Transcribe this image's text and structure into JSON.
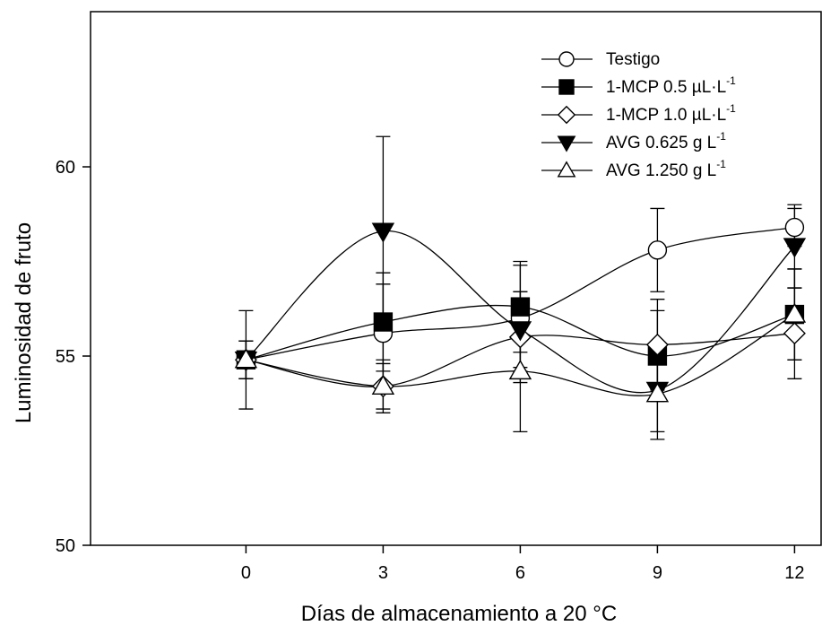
{
  "chart_data": {
    "type": "line",
    "xlabel": "Días de almacenamiento a 20 °C",
    "ylabel": "Luminosidad de fruto",
    "x": [
      0,
      3,
      6,
      9,
      12
    ],
    "x_ticks": [
      "0",
      "3",
      "6",
      "9",
      "12"
    ],
    "y_ticks": [
      "50",
      "55",
      "60"
    ],
    "xlim": [
      -3.4,
      12.6
    ],
    "ylim": [
      50,
      64.1
    ],
    "grid": false,
    "legend_position": "top-right",
    "series": [
      {
        "name": "Testigo",
        "label_main": "Testigo",
        "label_sup": "",
        "label_tail": "",
        "marker": "circle",
        "fill": "#ffffff",
        "values": [
          54.9,
          55.6,
          56.0,
          57.8,
          58.4
        ],
        "errors": [
          0.5,
          1.3,
          1.4,
          1.1,
          0.5
        ]
      },
      {
        "name": "1-MCP 0.5 µL·L-1",
        "label_main": "1-MCP 0.5 µL·L",
        "label_sup": "-1",
        "label_tail": "",
        "marker": "square",
        "fill": "#000000",
        "values": [
          54.9,
          55.9,
          56.3,
          55.0,
          56.1
        ],
        "errors": [
          0.5,
          1.3,
          1.2,
          1.2,
          1.2
        ]
      },
      {
        "name": "1-MCP 1.0 µL·L-1",
        "label_main": "1-MCP 1.0 µL·L",
        "label_sup": "-1",
        "label_tail": "",
        "marker": "diamond",
        "fill": "#ffffff",
        "values": [
          54.9,
          54.2,
          55.5,
          55.3,
          55.6
        ],
        "errors": [
          0.5,
          0.6,
          1.2,
          1.2,
          1.2
        ]
      },
      {
        "name": "AVG 0.625 g L-1",
        "label_main": "AVG 0.625 g L",
        "label_sup": "-1",
        "label_tail": "",
        "marker": "triangle-down",
        "fill": "#000000",
        "values": [
          54.9,
          58.3,
          55.7,
          54.1,
          57.9
        ],
        "errors": [
          1.3,
          2.5,
          1.0,
          1.1,
          1.1
        ]
      },
      {
        "name": "AVG 1.250 g L-1",
        "label_main": "AVG 1.250 g L",
        "label_sup": "-1",
        "label_tail": "",
        "marker": "triangle-up",
        "fill": "#ffffff",
        "values": [
          54.9,
          54.2,
          54.6,
          54.0,
          56.1
        ],
        "errors": [
          0.5,
          0.7,
          1.6,
          1.2,
          1.2
        ]
      }
    ]
  }
}
